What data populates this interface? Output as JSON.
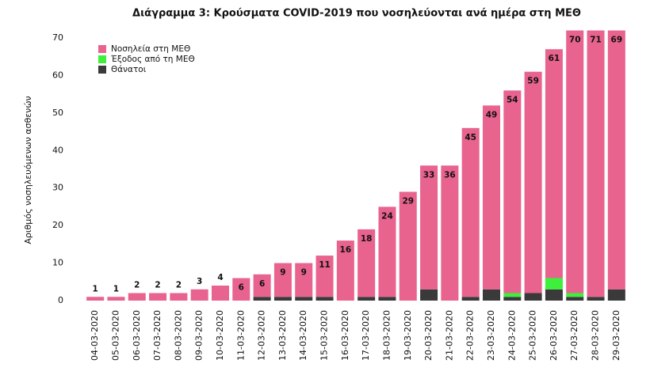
{
  "chart_data": {
    "type": "stacked_bar",
    "title": "Διάγραμμα 3: Κρούσματα COVID-2019 που νοσηλεύονται ανά ημέρα στη ΜΕΘ",
    "y_label": "Αριθμός νοσηλευόμενων ασθενών",
    "categories": [
      "04-03-2020",
      "05-03-2020",
      "06-03-2020",
      "07-03-2020",
      "08-03-2020",
      "09-03-2020",
      "10-03-2020",
      "11-03-2020",
      "12-03-2020",
      "13-03-2020",
      "14-03-2020",
      "15-03-2020",
      "16-03-2020",
      "17-03-2020",
      "18-03-2020",
      "19-03-2020",
      "20-03-2020",
      "21-03-2020",
      "22-03-2020",
      "23-03-2020",
      "24-03-2020",
      "25-03-2020",
      "26-03-2020",
      "27-03-2020",
      "28-03-2020",
      "29-03-2020"
    ],
    "series": [
      {
        "name": "Νοσηλεία στη ΜΕΘ",
        "color": "#e8638e",
        "values": [
          1,
          1,
          2,
          2,
          2,
          3,
          4,
          6,
          6,
          9,
          9,
          11,
          16,
          18,
          24,
          29,
          33,
          36,
          45,
          49,
          54,
          59,
          61,
          70,
          71,
          69
        ]
      },
      {
        "name": "Έξοδος από τη ΜΕΘ",
        "color": "#3cf03c",
        "values": [
          0,
          0,
          0,
          0,
          0,
          0,
          0,
          0,
          0,
          0,
          0,
          0,
          0,
          0,
          0,
          0,
          0,
          0,
          0,
          0,
          1,
          0,
          3,
          1,
          0,
          0
        ]
      },
      {
        "name": "Θάνατοι",
        "color": "#3a3a3a",
        "values": [
          0,
          0,
          0,
          0,
          0,
          0,
          0,
          0,
          1,
          1,
          1,
          1,
          0,
          1,
          1,
          0,
          3,
          0,
          1,
          3,
          1,
          2,
          3,
          1,
          1,
          3
        ]
      }
    ],
    "labeled_series": 0,
    "stack_order": [
      2,
      1,
      0
    ],
    "ylim": [
      0,
      72
    ],
    "yticks": [
      0,
      10,
      20,
      30,
      40,
      50,
      60,
      70
    ],
    "grid": false,
    "legend": "top-left"
  }
}
